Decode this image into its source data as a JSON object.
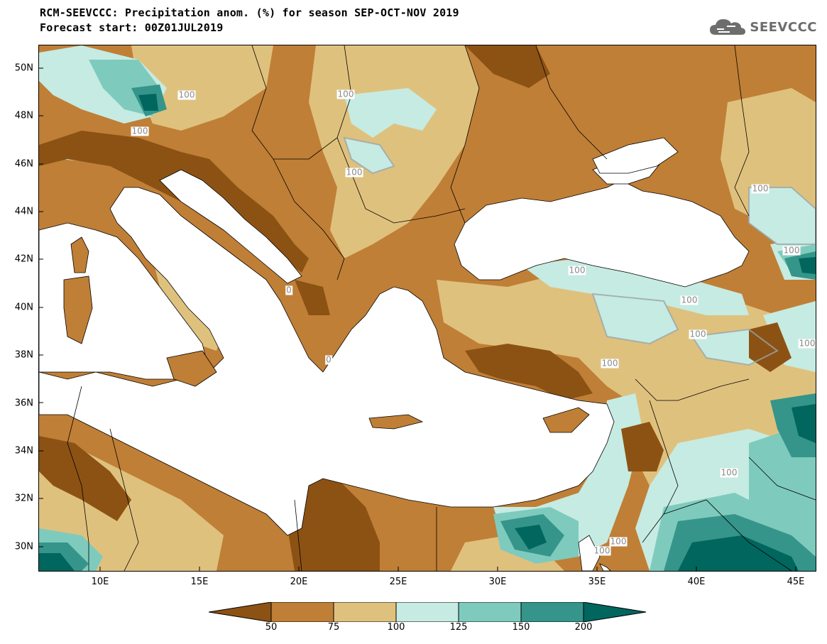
{
  "header": {
    "title_line1": "RCM-SEEVCCC: Precipitation anom. (%) for season SEP-OCT-NOV 2019",
    "title_line2": "Forecast start: 00Z01JUL2019"
  },
  "logo": {
    "text": "SEEVCCC",
    "icon": "cloud-icon"
  },
  "map": {
    "lat_labels": [
      "50N",
      "48N",
      "46N",
      "44N",
      "42N",
      "40N",
      "38N",
      "36N",
      "34N",
      "32N",
      "30N"
    ],
    "lon_labels": [
      "10E",
      "15E",
      "20E",
      "25E",
      "30E",
      "35E",
      "40E",
      "45E"
    ],
    "contour_labels": [
      "100",
      "100",
      "100",
      "100",
      "100",
      "100",
      "100",
      "100",
      "100",
      "100",
      "100",
      "100",
      "100",
      "100",
      "0",
      "0"
    ]
  },
  "colorbar": {
    "labels": [
      "50",
      "75",
      "100",
      "125",
      "150",
      "200"
    ],
    "colors": [
      "#8c5214",
      "#c07f36",
      "#dfc17e",
      "#c6ebe2",
      "#7ecbbd",
      "#35958a",
      "#01665e"
    ]
  },
  "colors": {
    "sea": "#ffffff",
    "brown_dark": "#8c5214",
    "brown": "#c07f36",
    "tan": "#dfc17e",
    "aqua_light": "#c6ebe2",
    "teal": "#7ecbbd",
    "teal_dark": "#35958a",
    "teal_deep": "#01665e"
  }
}
